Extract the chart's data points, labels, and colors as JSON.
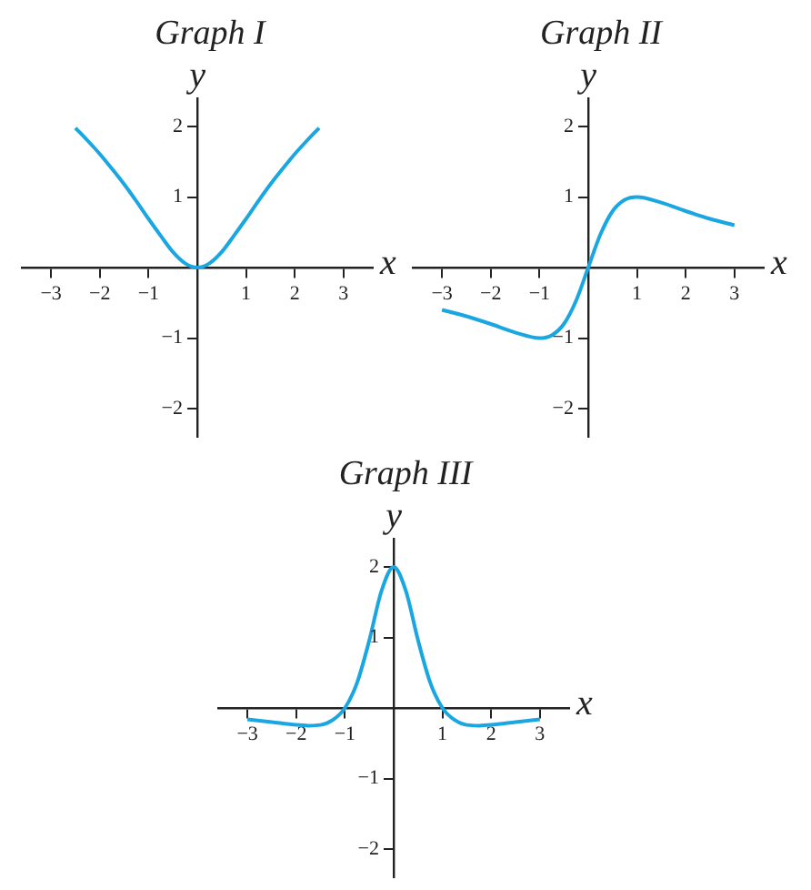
{
  "chart_data": [
    {
      "type": "line",
      "title": "Graph I",
      "xlabel": "x",
      "ylabel": "y",
      "x": [
        -2.5,
        -2.25,
        -2,
        -1.75,
        -1.5,
        -1.25,
        -1,
        -0.75,
        -0.5,
        -0.25,
        0,
        0.25,
        0.5,
        0.75,
        1,
        1.25,
        1.5,
        1.75,
        2,
        2.25,
        2.5
      ],
      "series": [
        {
          "color": "#1aa7e1",
          "values": [
            1.98,
            1.8,
            1.61,
            1.4,
            1.18,
            0.94,
            0.69,
            0.45,
            0.22,
            0.06,
            0,
            0.06,
            0.22,
            0.45,
            0.69,
            0.94,
            1.18,
            1.4,
            1.61,
            1.8,
            1.98
          ]
        }
      ],
      "xlim": [
        -3.6,
        3.6
      ],
      "ylim": [
        -2.4,
        2.4
      ],
      "xticks": [
        -3,
        -2,
        -1,
        1,
        2,
        3
      ],
      "yticks": [
        -2,
        -1,
        1,
        2
      ],
      "grid": false,
      "legend": false,
      "marker": "none",
      "line_style": "solid"
    },
    {
      "type": "line",
      "title": "Graph II",
      "xlabel": "x",
      "ylabel": "y",
      "x": [
        -3,
        -2.5,
        -2,
        -1.5,
        -1,
        -0.75,
        -0.5,
        -0.25,
        0,
        0.25,
        0.5,
        0.75,
        1,
        1.5,
        2,
        2.5,
        3
      ],
      "series": [
        {
          "color": "#1aa7e1",
          "values": [
            -0.6,
            -0.69,
            -0.8,
            -0.92,
            -1,
            -0.96,
            -0.8,
            -0.47,
            0,
            0.47,
            0.8,
            0.96,
            1,
            0.92,
            0.8,
            0.69,
            0.6
          ]
        }
      ],
      "xlim": [
        -3.6,
        3.6
      ],
      "ylim": [
        -2.4,
        2.4
      ],
      "xticks": [
        -3,
        -2,
        -1,
        1,
        2,
        3
      ],
      "yticks": [
        -2,
        -1,
        1,
        2
      ],
      "grid": false,
      "legend": false,
      "marker": "none",
      "line_style": "solid"
    },
    {
      "type": "line",
      "title": "Graph III",
      "xlabel": "x",
      "ylabel": "y",
      "x": [
        -3,
        -2.5,
        -2,
        -1.75,
        -1.5,
        -1.25,
        -1,
        -0.75,
        -0.5,
        -0.25,
        0,
        0.25,
        0.5,
        0.75,
        1,
        1.25,
        1.5,
        1.75,
        2,
        2.5,
        3
      ],
      "series": [
        {
          "color": "#1aa7e1",
          "values": [
            -0.16,
            -0.2,
            -0.24,
            -0.25,
            -0.24,
            -0.17,
            0,
            0.36,
            0.96,
            1.66,
            2,
            1.66,
            0.96,
            0.36,
            0,
            -0.17,
            -0.24,
            -0.25,
            -0.24,
            -0.2,
            -0.16
          ]
        }
      ],
      "xlim": [
        -3.6,
        3.6
      ],
      "ylim": [
        -2.4,
        2.4
      ],
      "xticks": [
        -3,
        -2,
        -1,
        1,
        2,
        3
      ],
      "yticks": [
        -2,
        -1,
        1,
        2
      ],
      "grid": false,
      "legend": false,
      "marker": "none",
      "line_style": "solid"
    }
  ]
}
